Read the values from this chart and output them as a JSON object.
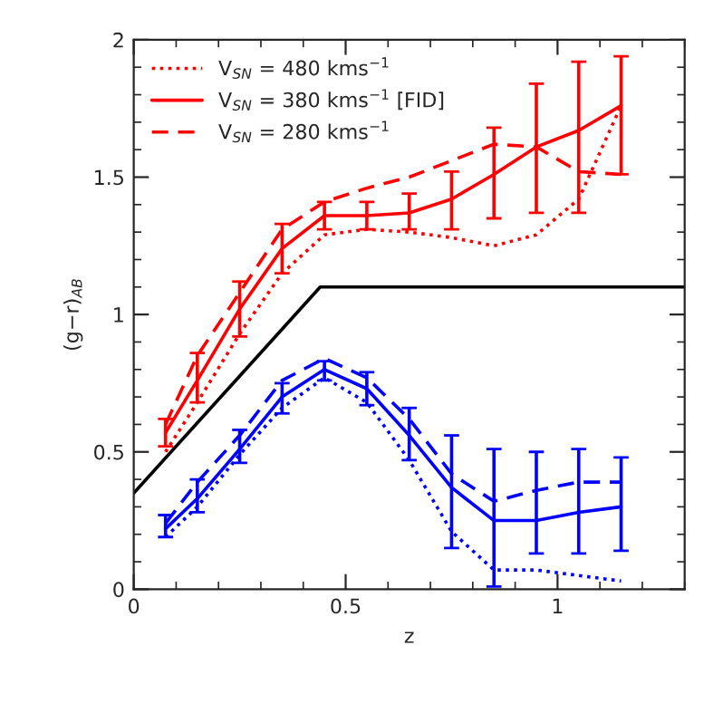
{
  "chart_data": {
    "type": "line",
    "xlabel": "z",
    "ylabel": "(g−r)$_{AB}$",
    "x": [
      0.075,
      0.15,
      0.25,
      0.35,
      0.45,
      0.55,
      0.65,
      0.75,
      0.85,
      0.95,
      1.05,
      1.15
    ],
    "xlim": [
      0,
      1.3
    ],
    "xticks": [
      0,
      0.5,
      1
    ],
    "ylim": [
      0,
      2
    ],
    "yticks": [
      0,
      0.5,
      1,
      1.5,
      2
    ],
    "grid": false,
    "legend": "top left",
    "series": [
      {
        "name": "V$_{SN}$ = 480 kms$^{−1}$",
        "color": "#ff0000",
        "line_style": "dotted",
        "values": [
          0.5,
          0.68,
          0.93,
          1.15,
          1.29,
          1.31,
          1.3,
          1.28,
          1.25,
          1.29,
          1.42,
          1.76
        ]
      },
      {
        "name": "V$_{SN}$ = 380 kms$^{−1}$ [FID]",
        "color": "#ff0000",
        "line_style": "solid",
        "values": [
          0.57,
          0.76,
          1.02,
          1.24,
          1.36,
          1.36,
          1.37,
          1.42,
          1.51,
          1.61,
          1.67,
          1.76
        ],
        "errors": [
          [
            0.52,
            0.62
          ],
          [
            0.68,
            0.86
          ],
          [
            0.92,
            1.12
          ],
          [
            1.15,
            1.33
          ],
          [
            1.31,
            1.41
          ],
          [
            1.31,
            1.41
          ],
          [
            1.31,
            1.44
          ],
          [
            1.31,
            1.52
          ],
          [
            1.35,
            1.68
          ],
          [
            1.37,
            1.84
          ],
          [
            1.37,
            1.92
          ],
          [
            1.51,
            1.94
          ]
        ]
      },
      {
        "name": "V$_{SN}$ = 280 kms$^{−1}$",
        "color": "#ff0000",
        "line_style": "dashed",
        "values": [
          0.6,
          0.85,
          1.08,
          1.31,
          1.41,
          1.46,
          1.5,
          1.56,
          1.62,
          1.61,
          1.52,
          1.51
        ]
      },
      {
        "color": "#0000ff",
        "line_style": "dotted",
        "values": [
          0.19,
          0.3,
          0.49,
          0.66,
          0.77,
          0.68,
          0.47,
          0.21,
          0.07,
          0.07,
          0.05,
          0.03
        ]
      },
      {
        "color": "#0000ff",
        "line_style": "solid",
        "values": [
          0.22,
          0.33,
          0.51,
          0.7,
          0.8,
          0.73,
          0.56,
          0.37,
          0.25,
          0.25,
          0.28,
          0.3
        ],
        "errors": [
          [
            0.19,
            0.27
          ],
          [
            0.28,
            0.4
          ],
          [
            0.46,
            0.58
          ],
          [
            0.64,
            0.75
          ],
          [
            0.76,
            0.83
          ],
          [
            0.67,
            0.79
          ],
          [
            0.47,
            0.66
          ],
          [
            0.15,
            0.56
          ],
          [
            0.01,
            0.51
          ],
          [
            0.13,
            0.5
          ],
          [
            0.13,
            0.51
          ],
          [
            0.14,
            0.48
          ]
        ]
      },
      {
        "color": "#0000ff",
        "line_style": "dashed",
        "values": [
          0.24,
          0.39,
          0.56,
          0.76,
          0.84,
          0.77,
          0.62,
          0.42,
          0.32,
          0.36,
          0.39,
          0.39
        ]
      },
      {
        "color": "#000000",
        "line_style": "solid",
        "x": [
          0,
          0.44,
          1.3
        ],
        "values": [
          0.35,
          1.1,
          1.1
        ]
      }
    ]
  }
}
